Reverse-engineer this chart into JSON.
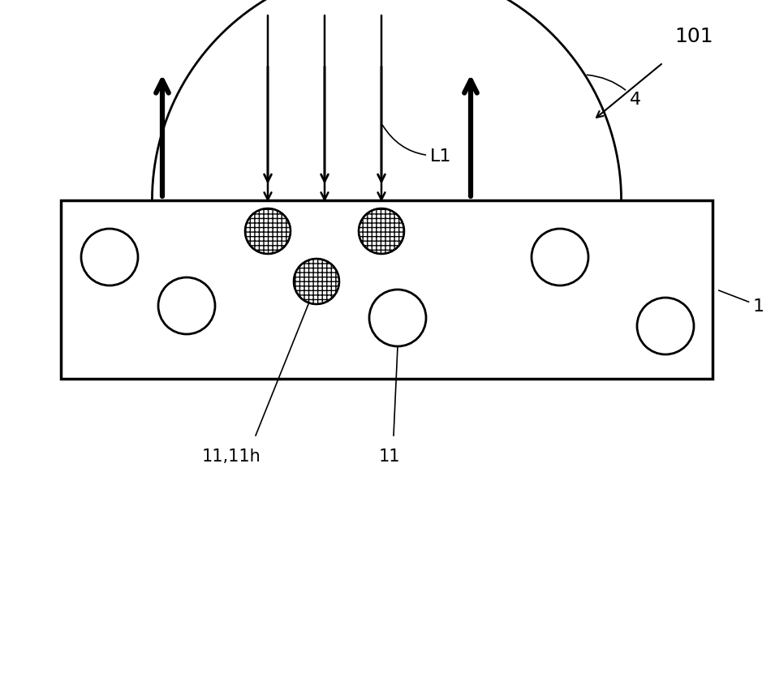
{
  "background_color": "#ffffff",
  "fig_width": 9.55,
  "fig_height": 8.53,
  "dpi": 100,
  "label_101": "101",
  "label_L1": "L1",
  "label_4": "4",
  "label_1": "1",
  "label_11_11h": "11,11h",
  "label_11": "11",
  "label_fontsize": 16
}
